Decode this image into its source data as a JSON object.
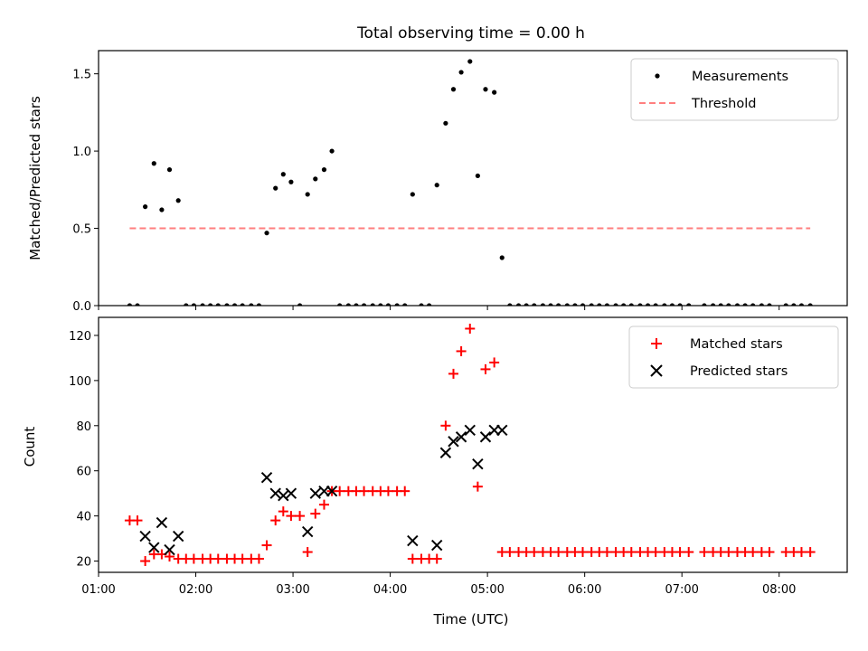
{
  "figure": {
    "title": "Total observing time = 0.00 h"
  },
  "chart_data": [
    {
      "type": "scatter",
      "ylabel": "Matched/Predicted stars",
      "ylim": [
        0,
        1.65
      ],
      "yticks": [
        0.0,
        0.5,
        1.0,
        1.5
      ],
      "ytick_labels": [
        "0.0",
        "0.5",
        "1.0",
        "1.5"
      ],
      "xlim": [
        1.0,
        8.7
      ],
      "legend_placement": "top-right",
      "series": [
        {
          "name": "Measurements",
          "marker": "dot",
          "color": "#000000",
          "x": [
            1.32,
            1.4,
            1.48,
            1.57,
            1.65,
            1.73,
            1.82,
            1.9,
            1.98,
            2.07,
            2.15,
            2.23,
            2.32,
            2.4,
            2.48,
            2.57,
            2.65,
            2.73,
            2.82,
            2.9,
            2.98,
            3.07,
            3.15,
            3.23,
            3.32,
            3.4,
            3.48,
            3.57,
            3.65,
            3.73,
            3.82,
            3.9,
            3.98,
            4.07,
            4.15,
            4.23,
            4.32,
            4.4,
            4.48,
            4.57,
            4.65,
            4.73,
            4.82,
            4.9,
            4.98,
            5.07,
            5.15,
            5.23,
            5.32,
            5.4,
            5.48,
            5.57,
            5.65,
            5.73,
            5.82,
            5.9,
            5.98,
            6.07,
            6.15,
            6.23,
            6.32,
            6.4,
            6.48,
            6.57,
            6.65,
            6.73,
            6.82,
            6.9,
            6.98,
            7.07,
            7.23,
            7.32,
            7.4,
            7.48,
            7.57,
            7.65,
            7.73,
            7.82,
            7.9,
            8.07,
            8.15,
            8.23,
            8.32
          ],
          "y": [
            0,
            0,
            0.64,
            0.92,
            0.62,
            0.88,
            0.68,
            0,
            0,
            0,
            0,
            0,
            0,
            0,
            0,
            0,
            0,
            0.47,
            0.76,
            0.85,
            0.8,
            0,
            0.72,
            0.82,
            0.88,
            1.0,
            0,
            0,
            0,
            0,
            0,
            0,
            0,
            0,
            0,
            0.72,
            0,
            0,
            0.78,
            1.18,
            1.4,
            1.51,
            1.58,
            0.84,
            1.4,
            1.38,
            0.31,
            0,
            0,
            0,
            0,
            0,
            0,
            0,
            0,
            0,
            0,
            0,
            0,
            0,
            0,
            0,
            0,
            0,
            0,
            0,
            0,
            0,
            0,
            0,
            0,
            0,
            0,
            0,
            0,
            0,
            0,
            0,
            0,
            0,
            0,
            0,
            0
          ]
        },
        {
          "name": "Threshold",
          "line": "dashed",
          "color": "#ff7f7f",
          "x": [
            1.32,
            8.32
          ],
          "y": [
            0.5,
            0.5
          ]
        }
      ]
    },
    {
      "type": "scatter",
      "xlabel": "Time (UTC)",
      "ylabel": "Count",
      "ylim": [
        15,
        128
      ],
      "yticks": [
        20,
        40,
        60,
        80,
        100,
        120
      ],
      "ytick_labels": [
        "20",
        "40",
        "60",
        "80",
        "100",
        "120"
      ],
      "xlim": [
        1.0,
        8.7
      ],
      "xticks": [
        1,
        2,
        3,
        4,
        5,
        6,
        7,
        8
      ],
      "xtick_labels": [
        "01:00",
        "02:00",
        "03:00",
        "04:00",
        "05:00",
        "06:00",
        "07:00",
        "08:00"
      ],
      "legend_placement": "top-right",
      "series": [
        {
          "name": "Matched stars",
          "marker": "plus",
          "color": "#ff0000",
          "x": [
            1.32,
            1.4,
            1.48,
            1.57,
            1.65,
            1.73,
            1.82,
            1.9,
            1.98,
            2.07,
            2.15,
            2.23,
            2.32,
            2.4,
            2.48,
            2.57,
            2.65,
            2.73,
            2.82,
            2.9,
            2.98,
            3.07,
            3.15,
            3.23,
            3.32,
            3.4,
            3.48,
            3.57,
            3.65,
            3.73,
            3.82,
            3.9,
            3.98,
            4.07,
            4.15,
            4.23,
            4.32,
            4.4,
            4.48,
            4.57,
            4.65,
            4.73,
            4.82,
            4.9,
            4.98,
            5.07,
            5.15,
            5.23,
            5.32,
            5.4,
            5.48,
            5.57,
            5.65,
            5.73,
            5.82,
            5.9,
            5.98,
            6.07,
            6.15,
            6.23,
            6.32,
            6.4,
            6.48,
            6.57,
            6.65,
            6.73,
            6.82,
            6.9,
            6.98,
            7.07,
            7.23,
            7.32,
            7.4,
            7.48,
            7.57,
            7.65,
            7.73,
            7.82,
            7.9,
            8.07,
            8.15,
            8.23,
            8.32
          ],
          "y": [
            38,
            38,
            20,
            23,
            23,
            22,
            21,
            21,
            21,
            21,
            21,
            21,
            21,
            21,
            21,
            21,
            21,
            27,
            38,
            42,
            40,
            40,
            24,
            41,
            45,
            51,
            51,
            51,
            51,
            51,
            51,
            51,
            51,
            51,
            51,
            21,
            21,
            21,
            21,
            80,
            103,
            113,
            123,
            53,
            105,
            108,
            24,
            24,
            24,
            24,
            24,
            24,
            24,
            24,
            24,
            24,
            24,
            24,
            24,
            24,
            24,
            24,
            24,
            24,
            24,
            24,
            24,
            24,
            24,
            24,
            24,
            24,
            24,
            24,
            24,
            24,
            24,
            24,
            24,
            24,
            24,
            24,
            24
          ]
        },
        {
          "name": "Predicted stars",
          "marker": "x",
          "color": "#000000",
          "x": [
            1.48,
            1.57,
            1.65,
            1.73,
            1.82,
            2.73,
            2.82,
            2.9,
            2.98,
            3.15,
            3.23,
            3.32,
            3.4,
            4.23,
            4.48,
            4.57,
            4.65,
            4.73,
            4.82,
            4.9,
            4.98,
            5.07,
            5.15
          ],
          "y": [
            31,
            26,
            37,
            25,
            31,
            57,
            50,
            49,
            50,
            33,
            50,
            51,
            51,
            29,
            27,
            68,
            73,
            75,
            78,
            63,
            75,
            78,
            78
          ]
        }
      ]
    }
  ]
}
